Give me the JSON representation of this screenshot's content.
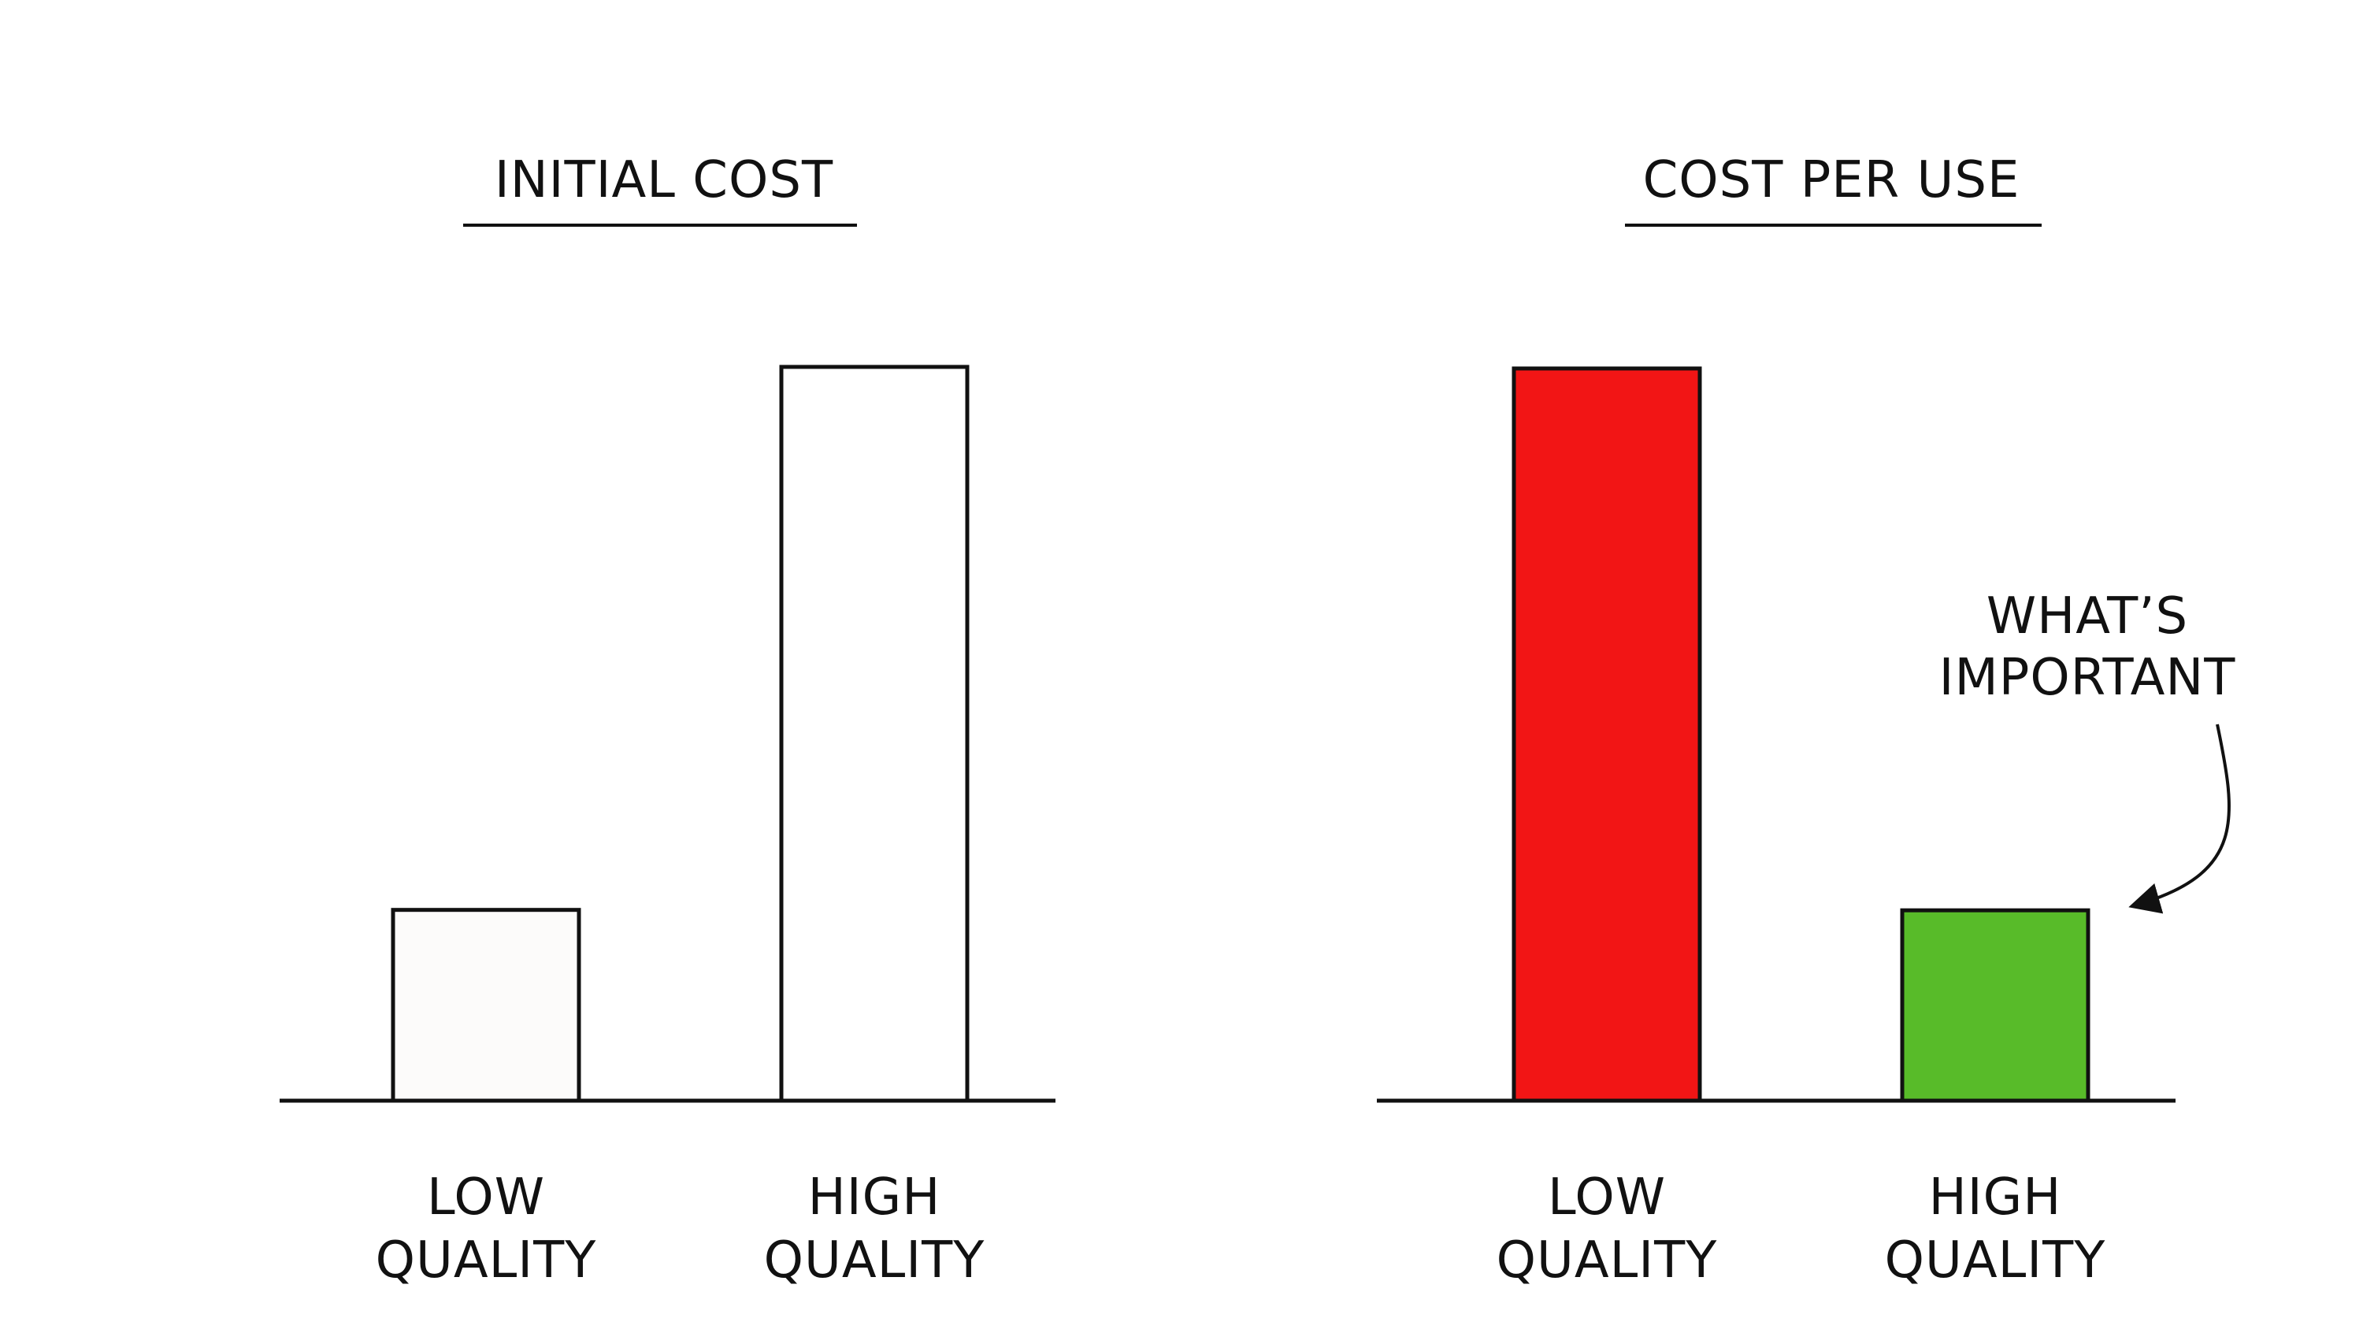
{
  "chart_data": [
    {
      "type": "bar",
      "title": "INITIAL COST",
      "categories": [
        [
          "LOW",
          "QUALITY"
        ],
        [
          "HIGH",
          "QUALITY"
        ]
      ],
      "values": [
        26,
        100
      ],
      "colors": [
        "#fcfbfa",
        "#ffffff"
      ],
      "ylim": [
        0,
        100
      ],
      "grid": false,
      "legend": "none"
    },
    {
      "type": "bar",
      "title": "COST PER USE",
      "categories": [
        [
          "LOW",
          "QUALITY"
        ],
        [
          "HIGH",
          "QUALITY"
        ]
      ],
      "values": [
        100,
        26
      ],
      "colors": [
        "#f21515",
        "#58bb29"
      ],
      "ylim": [
        0,
        100
      ],
      "grid": false,
      "legend": "none",
      "annotation": {
        "lines": [
          "WHAT’S",
          "IMPORTANT"
        ],
        "points_to": "HIGH QUALITY"
      }
    }
  ],
  "stroke_color": "#111111"
}
